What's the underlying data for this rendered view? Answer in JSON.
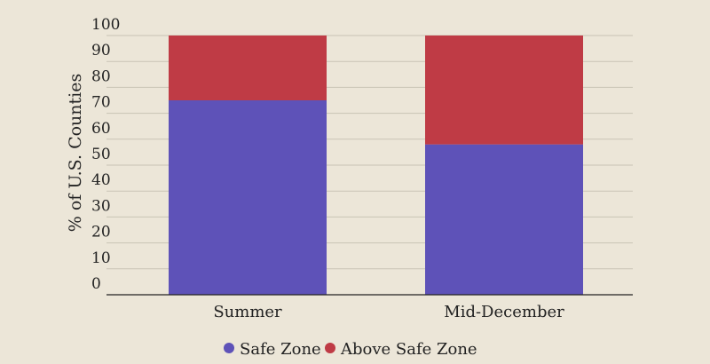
{
  "chart_data": {
    "type": "bar",
    "stacked": true,
    "categories": [
      "Summer",
      "Mid-December"
    ],
    "series": [
      {
        "name": "Safe Zone",
        "values": [
          75,
          58
        ],
        "color": "#5e52b8"
      },
      {
        "name": "Above Safe Zone",
        "values": [
          25,
          42
        ],
        "color": "#bf3b45"
      }
    ],
    "ylabel": "% of U.S. Counties",
    "ylim": [
      0,
      100
    ],
    "yticks": [
      0,
      10,
      20,
      30,
      40,
      50,
      60,
      70,
      80,
      90,
      100
    ],
    "grid": true,
    "legend": "bottom-center"
  }
}
